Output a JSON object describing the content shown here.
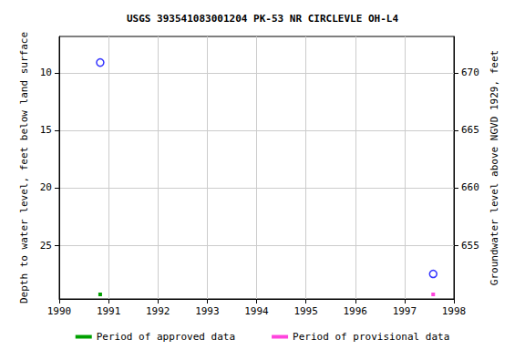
{
  "chart_data": {
    "type": "scatter",
    "title": "USGS 393541083001204 PK-53 NR CIRCLEVLE OH-L4",
    "y_label": "Depth to water level, feet below land surface",
    "y2_label": "Groundwater level above NGVD 1929, feet",
    "xlim": [
      1990,
      1998
    ],
    "xticks": [
      1990,
      1991,
      1992,
      1993,
      1994,
      1995,
      1996,
      1997,
      1998
    ],
    "ylim": [
      6.83,
      29.68
    ],
    "yticks": [
      10,
      15,
      20,
      25
    ],
    "y2lim": [
      650.32,
      673.17
    ],
    "y2ticks": [
      655,
      660,
      665,
      670
    ],
    "grid": true,
    "legend": "bottom",
    "series": [
      {
        "color": "#0000ff",
        "marker": "circle",
        "x": [
          1990.83,
          1997.58
        ],
        "values": [
          9.1,
          27.5
        ]
      }
    ],
    "periods": [
      {
        "name": "Period of approved data",
        "color": "#00a000",
        "start": 1990.83,
        "end": 1990.83
      },
      {
        "name": "Period of provisional data",
        "color": "#ff44dd",
        "start": 1997.58,
        "end": 1997.58
      }
    ]
  }
}
